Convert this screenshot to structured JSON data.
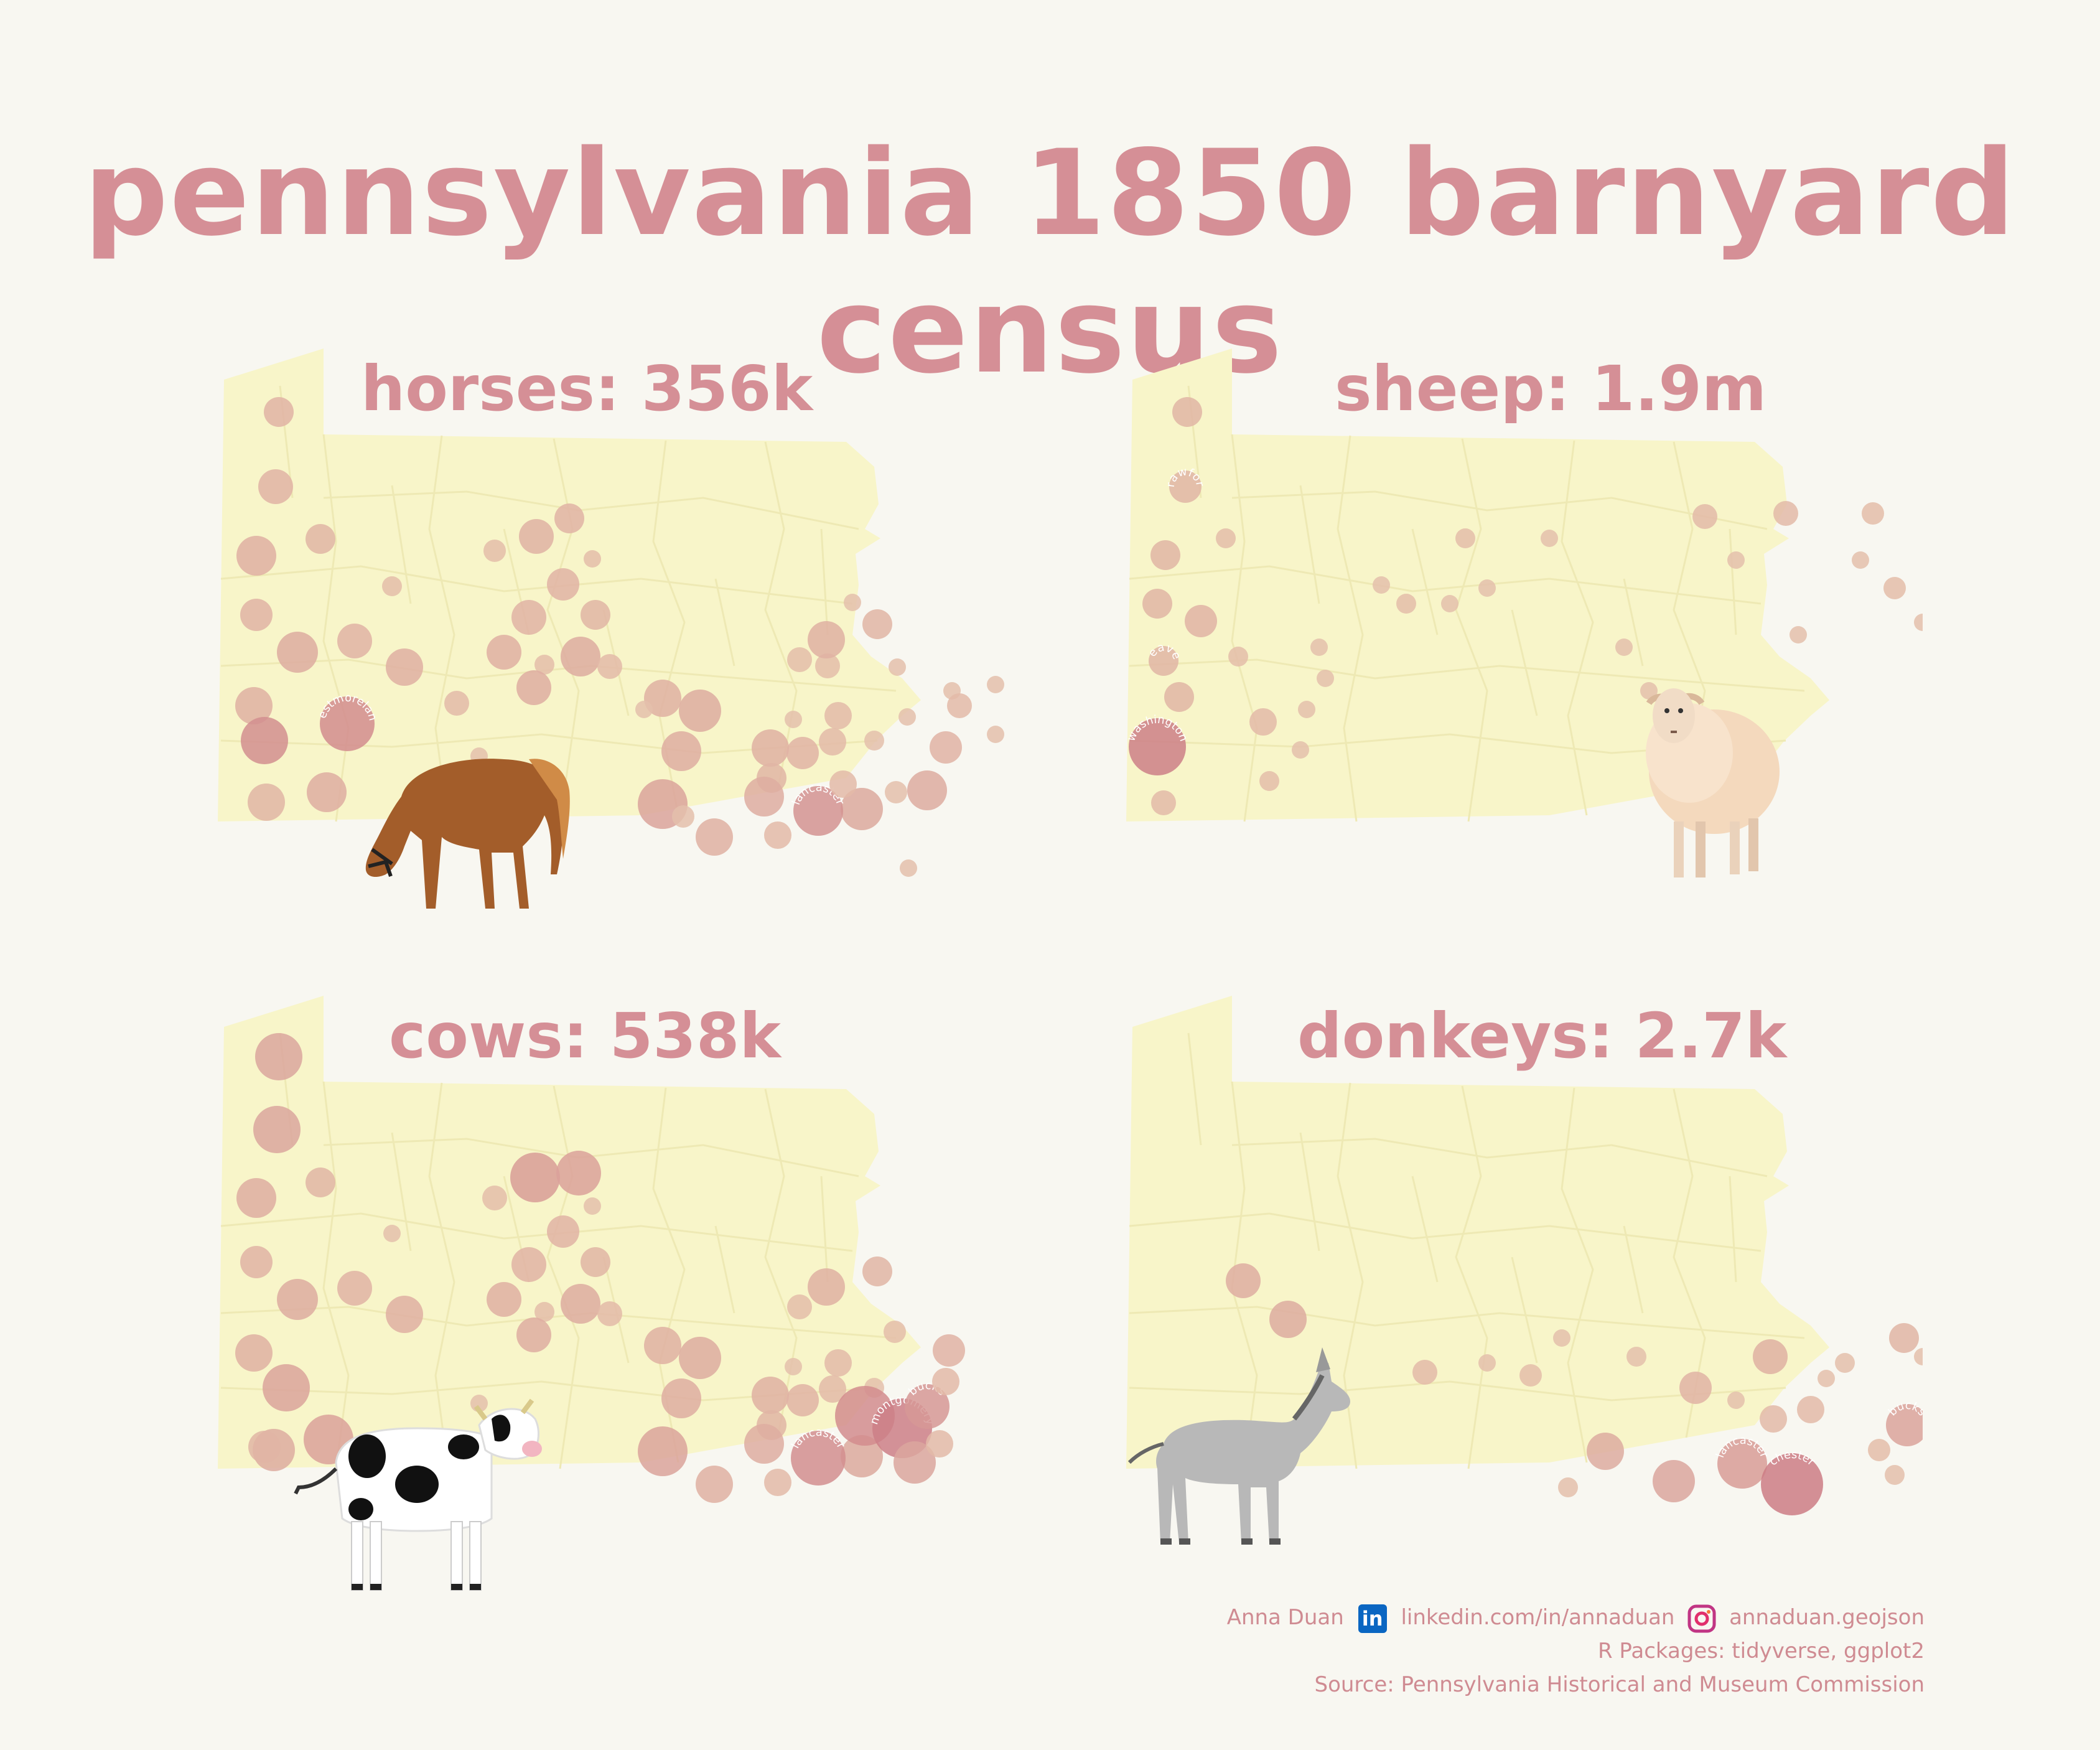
{
  "title": "pennsylvania 1850 barnyard census",
  "colors": {
    "background": "#f8f7f1",
    "state_fill": "#f8f5c9",
    "county_lines": "#eee9b4",
    "title": "#d58f96",
    "bubble_light": "#e8c9b0",
    "bubble_dark": "#c56a7a"
  },
  "panels": [
    {
      "id": "horses",
      "label": "horses: 356k",
      "icon": "horse-icon",
      "labeled_counties": [
        "westmoreland",
        "berks",
        "lancaster"
      ]
    },
    {
      "id": "sheep",
      "label": "sheep: 1.9m",
      "icon": "sheep-icon",
      "labeled_counties": [
        "crawford",
        "beaver",
        "washington"
      ]
    },
    {
      "id": "cows",
      "label": "cows: 538k",
      "icon": "cow-icon",
      "labeled_counties": [
        "bucks",
        "montgomery",
        "lancaster"
      ]
    },
    {
      "id": "donkeys",
      "label": "donkeys: 2.7k",
      "icon": "donkey-icon",
      "labeled_counties": [
        "bucks",
        "lancaster",
        "chester"
      ]
    }
  ],
  "footer": {
    "author": "Anna Duan",
    "linkedin": "linkedin.com/in/annaduan",
    "instagram": "annaduan.geojson",
    "packages": "R Packages: tidyverse, ggplot2",
    "source": "Source: Pennsylvania Historical and Museum Commission"
  }
}
